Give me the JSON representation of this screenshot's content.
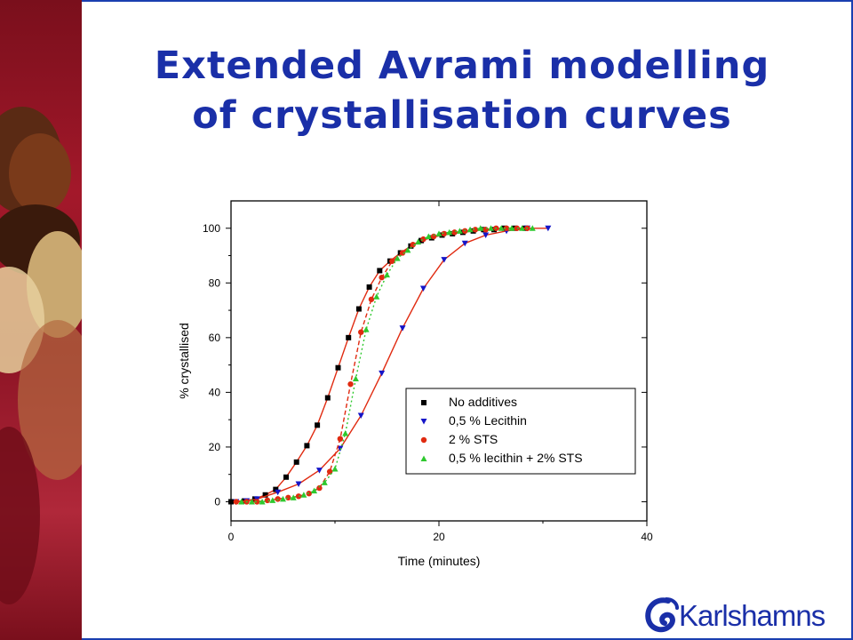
{
  "slide": {
    "title_line1": "Extended Avrami modelling",
    "title_line2": "of crystallisation curves",
    "logo_text": "Karlshamns",
    "colors": {
      "title": "#1a2fa8",
      "frame": "#1a3fb0",
      "side_photo": "#a3182a"
    }
  },
  "chart_data": {
    "type": "scatter",
    "title": "",
    "xlabel": "Time (minutes)",
    "ylabel": "% crystallised",
    "xlim": [
      0,
      40
    ],
    "ylim": [
      -7,
      110
    ],
    "xticks": [
      0,
      20,
      40
    ],
    "yticks": [
      0,
      20,
      40,
      60,
      80,
      100
    ],
    "grid": false,
    "legend_position": "lower-right",
    "series": [
      {
        "name": "No additives",
        "color": "#000000",
        "marker": "square",
        "x": [
          0,
          1.3,
          2.3,
          3.3,
          4.3,
          5.3,
          6.3,
          7.3,
          8.3,
          9.3,
          10.3,
          11.3,
          12.3,
          13.3,
          14.3,
          15.3,
          16.3,
          17.3,
          18.3,
          19.3,
          20.3,
          21.3,
          22.3,
          23.3,
          24.3,
          25.3,
          26.3,
          27.3,
          28.3
        ],
        "y": [
          0,
          0.3,
          1,
          2.5,
          4.5,
          9,
          14.5,
          20.5,
          28,
          38,
          49,
          60,
          70.5,
          78.5,
          84.5,
          88,
          91,
          93.5,
          95.5,
          96.5,
          97.5,
          98,
          98.5,
          99,
          99.5,
          99.5,
          100,
          100,
          100
        ]
      },
      {
        "name": "0,5 % Lecithin",
        "color": "#1515c8",
        "marker": "triangle-down",
        "x": [
          0.5,
          1.5,
          2.5,
          4.5,
          6.5,
          8.5,
          10.5,
          12.5,
          14.5,
          16.5,
          18.5,
          20.5,
          22.5,
          24.5,
          26.5,
          28.5,
          30.5
        ],
        "y": [
          0,
          0.3,
          1,
          3.5,
          6.5,
          11.5,
          19.5,
          31.5,
          47,
          63.5,
          78,
          88.5,
          94.5,
          97.5,
          99,
          100,
          100
        ]
      },
      {
        "name": "2 % STS",
        "color": "#e02a10",
        "marker": "circle",
        "x": [
          0.5,
          1.5,
          2.5,
          3.5,
          4.5,
          5.5,
          6.5,
          7.5,
          8.5,
          9.5,
          10.5,
          11.5,
          12.5,
          13.5,
          14.5,
          15.5,
          16.5,
          17.5,
          18.5,
          19.5,
          20.5,
          21.5,
          22.5,
          23.5,
          24.5,
          25.5,
          26.5,
          27.5,
          28.5
        ],
        "y": [
          0,
          0,
          0,
          0.5,
          1,
          1.5,
          2,
          3,
          5,
          11,
          23,
          43,
          62,
          74,
          82,
          88,
          91,
          94,
          96,
          97,
          98,
          98.5,
          99,
          99.5,
          99.5,
          100,
          100,
          100,
          100
        ]
      },
      {
        "name": "0,5 % lecithin + 2% STS",
        "color": "#2ec82e",
        "marker": "triangle-up",
        "x": [
          1,
          2,
          3,
          4,
          5,
          6,
          7,
          8,
          9,
          10,
          11,
          12,
          13,
          14,
          15,
          16,
          17,
          18,
          19,
          20,
          21,
          22,
          23,
          24,
          25,
          26,
          27,
          28,
          29
        ],
        "y": [
          0,
          0,
          0,
          0.5,
          1,
          1.5,
          2.5,
          4,
          7,
          12,
          25,
          45,
          63,
          75,
          83,
          89,
          92,
          95,
          97,
          98,
          98.5,
          99,
          99.5,
          100,
          100,
          100,
          100,
          100,
          100
        ]
      }
    ]
  }
}
